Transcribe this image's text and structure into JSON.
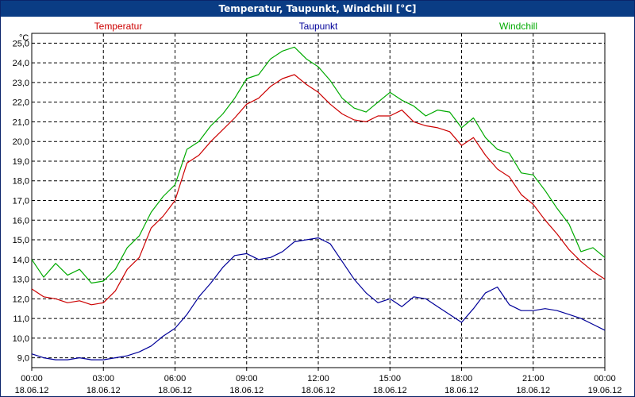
{
  "window": {
    "title": "Temperatur, Taupunkt, Windchill [°C]"
  },
  "colors": {
    "titlebar": "#0a3c84",
    "grid": "#000000",
    "axis": "#000000"
  },
  "chart_data": {
    "type": "line",
    "title": "Temperatur, Taupunkt, Windchill [°C]",
    "unit": "°C",
    "ylim": [
      8.5,
      25.5
    ],
    "xlim": [
      0,
      24
    ],
    "grid": true,
    "y_ticks": [
      9.0,
      10.0,
      11.0,
      12.0,
      13.0,
      14.0,
      15.0,
      16.0,
      17.0,
      18.0,
      19.0,
      20.0,
      21.0,
      22.0,
      23.0,
      24.0,
      25.0
    ],
    "y_tick_labels": [
      "9,0",
      "10,0",
      "11,0",
      "12,0",
      "13,0",
      "14,0",
      "15,0",
      "16,0",
      "17,0",
      "18,0",
      "19,0",
      "20,0",
      "21,0",
      "22,0",
      "23,0",
      "24,0",
      "25,0"
    ],
    "x_ticks": [
      {
        "hour": 0,
        "time": "00:00",
        "date": "18.06.12"
      },
      {
        "hour": 3,
        "time": "03:00",
        "date": "18.06.12"
      },
      {
        "hour": 6,
        "time": "06:00",
        "date": "18.06.12"
      },
      {
        "hour": 9,
        "time": "09:00",
        "date": "18.06.12"
      },
      {
        "hour": 12,
        "time": "12:00",
        "date": "18.06.12"
      },
      {
        "hour": 15,
        "time": "15:00",
        "date": "18.06.12"
      },
      {
        "hour": 18,
        "time": "18:00",
        "date": "18.06.12"
      },
      {
        "hour": 21,
        "time": "21:00",
        "date": "18.06.12"
      },
      {
        "hour": 24,
        "time": "00:00",
        "date": "19.06.12"
      }
    ],
    "series": [
      {
        "name": "Temperatur",
        "color": "#cc0000",
        "legend_position": "top-left",
        "x": [
          0,
          0.5,
          1,
          1.5,
          2,
          2.5,
          3,
          3.5,
          4,
          4.5,
          5,
          5.5,
          6,
          6.5,
          7,
          7.5,
          8,
          8.5,
          9,
          9.5,
          10,
          10.5,
          11,
          11.5,
          12,
          12.5,
          13,
          13.5,
          14,
          14.5,
          15,
          15.5,
          16,
          16.5,
          17,
          17.5,
          18,
          18.5,
          19,
          19.5,
          20,
          20.5,
          21,
          21.5,
          22,
          22.5,
          23,
          23.5,
          24
        ],
        "values": [
          12.5,
          12.1,
          12.0,
          11.8,
          11.9,
          11.7,
          11.8,
          12.4,
          13.5,
          14.1,
          15.6,
          16.2,
          17.0,
          18.9,
          19.3,
          20.0,
          20.6,
          21.2,
          21.9,
          22.2,
          22.8,
          23.2,
          23.4,
          22.9,
          22.5,
          21.9,
          21.4,
          21.1,
          21.0,
          21.3,
          21.3,
          21.6,
          21.0,
          20.8,
          20.7,
          20.5,
          19.8,
          20.2,
          19.3,
          18.6,
          18.2,
          17.3,
          16.8,
          16.0,
          15.3,
          14.5,
          13.9,
          13.4,
          13.0
        ]
      },
      {
        "name": "Taupunkt",
        "color": "#000099",
        "legend_position": "top-center",
        "x": [
          0,
          0.5,
          1,
          1.5,
          2,
          2.5,
          3,
          3.5,
          4,
          4.5,
          5,
          5.5,
          6,
          6.5,
          7,
          7.5,
          8,
          8.5,
          9,
          9.5,
          10,
          10.5,
          11,
          11.5,
          12,
          12.5,
          13,
          13.5,
          14,
          14.5,
          15,
          15.5,
          16,
          16.5,
          17,
          17.5,
          18,
          18.5,
          19,
          19.5,
          20,
          20.5,
          21,
          21.5,
          22,
          22.5,
          23,
          23.5,
          24
        ],
        "values": [
          9.2,
          9.0,
          8.9,
          8.9,
          9.0,
          8.9,
          8.9,
          9.0,
          9.1,
          9.3,
          9.6,
          10.1,
          10.5,
          11.2,
          12.1,
          12.8,
          13.6,
          14.2,
          14.3,
          14.0,
          14.1,
          14.4,
          14.9,
          15.0,
          15.1,
          14.8,
          13.9,
          13.0,
          12.3,
          11.8,
          12.0,
          11.6,
          12.1,
          12.0,
          11.6,
          11.2,
          10.8,
          11.5,
          12.3,
          12.6,
          11.7,
          11.4,
          11.4,
          11.5,
          11.4,
          11.2,
          11.0,
          10.7,
          10.4
        ]
      },
      {
        "name": "Windchill",
        "color": "#00aa00",
        "legend_position": "top-right",
        "x": [
          0,
          0.5,
          1,
          1.5,
          2,
          2.5,
          3,
          3.5,
          4,
          4.5,
          5,
          5.5,
          6,
          6.5,
          7,
          7.5,
          8,
          8.5,
          9,
          9.5,
          10,
          10.5,
          11,
          11.5,
          12,
          12.5,
          13,
          13.5,
          14,
          14.5,
          15,
          15.5,
          16,
          16.5,
          17,
          17.5,
          18,
          18.5,
          19,
          19.5,
          20,
          20.5,
          21,
          21.5,
          22,
          22.5,
          23,
          23.5,
          24
        ],
        "values": [
          14.0,
          13.1,
          13.8,
          13.2,
          13.5,
          12.8,
          12.9,
          13.5,
          14.6,
          15.2,
          16.4,
          17.2,
          17.8,
          19.6,
          20.0,
          20.8,
          21.4,
          22.2,
          23.2,
          23.4,
          24.2,
          24.6,
          24.8,
          24.2,
          23.8,
          23.1,
          22.2,
          21.7,
          21.5,
          22.0,
          22.5,
          22.1,
          21.8,
          21.3,
          21.6,
          21.5,
          20.7,
          21.2,
          20.2,
          19.6,
          19.4,
          18.4,
          18.3,
          17.5,
          16.6,
          15.8,
          14.4,
          14.6,
          14.1
        ]
      }
    ]
  }
}
